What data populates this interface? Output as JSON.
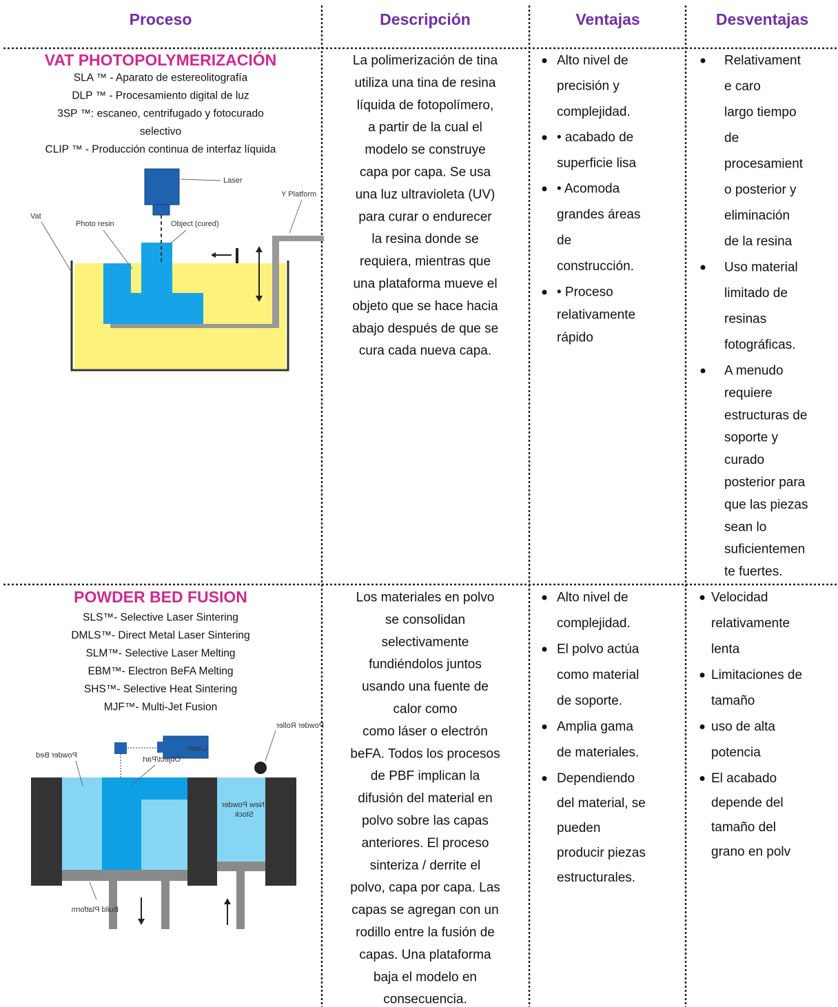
{
  "table": {
    "headers": [
      "Proceso",
      "Descripción",
      "Ventajas",
      "Desventajas"
    ],
    "rows": [
      {
        "process": {
          "title": "VAT PHOTOPOLYMERIZACIÓN",
          "lines": [
            "SLA ™ - Aparato de estereolitografía",
            "DLP ™ - Procesamiento digital de luz",
            "3SP ™: escaneo, centrifugado y fotocurado",
            "selectivo",
            "CLIP ™ - Producción continua de interfaz líquida"
          ]
        },
        "diagram": {
          "labels": [
            "Laser",
            "Y Platform",
            "Vat",
            "Photo resin",
            "Object (cured)"
          ]
        },
        "description": [
          "La polimerización de tina",
          "utiliza una tina de resina",
          "líquida de fotopolímero,",
          "a partir de la cual el",
          "modelo se construye",
          "capa por capa. Se usa",
          "una luz ultravioleta (UV)",
          "para curar o endurecer",
          "la resina donde se",
          "requiera, mientras que",
          "una plataforma mueve el",
          "objeto que se hace hacia",
          "abajo después de que se",
          "cura cada nueva capa."
        ],
        "advantages": [
          [
            "Alto nivel de",
            "precisión y",
            "complejidad."
          ],
          [
            "• acabado de",
            "superficie lisa"
          ],
          [
            "• Acomoda",
            "grandes áreas",
            "de",
            "construcción."
          ],
          [
            "• Proceso",
            "relativamente",
            "rápido"
          ]
        ],
        "disadvantages": [
          [
            "Relativament",
            "e caro",
            "largo tiempo",
            "de",
            "procesamient",
            "o posterior y",
            "eliminación",
            "de la resina"
          ],
          [
            "Uso material",
            "limitado de",
            "resinas",
            "fotográficas."
          ],
          [
            "A menudo",
            "requiere",
            "estructuras de",
            "soporte y",
            "curado",
            "posterior para",
            "que las piezas",
            "sean lo",
            "suficientemen",
            "te fuertes."
          ]
        ]
      },
      {
        "process": {
          "title": "POWDER BED FUSION",
          "lines": [
            "SLS™- Selective Laser Sintering",
            "DMLS™- Direct Metal Laser Sintering",
            "SLM™- Selective Laser Melting",
            "EBM™- Electron BeFA Melting",
            "SHS™- Selective Heat Sintering",
            "MJF™- Multi-Jet Fusion"
          ]
        },
        "diagram": {
          "labels": [
            "Laser",
            "Powder Roller",
            "Powder Bed",
            "Object/Part",
            "New Powder",
            "Stock",
            "Build Platform"
          ]
        },
        "description": [
          "Los materiales en polvo",
          "se consolidan",
          "selectivamente",
          "fundiéndolos juntos",
          "usando una fuente de",
          "calor como",
          "como láser o electrón",
          "beFA. Todos los procesos",
          "de PBF implican la",
          "difusión del material en",
          "polvo sobre las capas",
          "anteriores. El proceso",
          "sinteriza / derrite el",
          "polvo, capa por capa. Las",
          "capas se agregan con un",
          "rodillo entre la fusión de",
          "capas. Una plataforma",
          "baja el modelo en",
          "consecuencia."
        ],
        "advantages": [
          [
            "Alto nivel de",
            "complejidad."
          ],
          [
            "El polvo actúa",
            "como material",
            "de soporte."
          ],
          [
            "Amplia gama",
            "de materiales."
          ],
          [
            "Dependiendo",
            "del material, se",
            "pueden",
            "producir piezas",
            "estructurales."
          ]
        ],
        "disadvantages": [
          [
            "Velocidad",
            "relativamente",
            "lenta"
          ],
          [
            "Limitaciones de",
            "tamaño"
          ],
          [
            "uso de alta",
            "potencia"
          ],
          [
            "El acabado",
            "depende del",
            "tamaño del",
            "grano en polv"
          ]
        ]
      }
    ]
  }
}
